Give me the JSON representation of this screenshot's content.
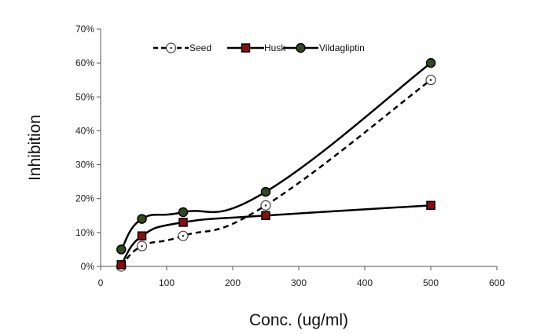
{
  "chart_data": {
    "type": "line",
    "title": "",
    "xlabel": "Conc. (ug/ml)",
    "ylabel": "Inhibition",
    "xlim": [
      0,
      600
    ],
    "ylim": [
      0,
      0.7
    ],
    "x_ticks": [
      0,
      100,
      200,
      300,
      400,
      500,
      600
    ],
    "y_ticks": [
      0,
      0.1,
      0.2,
      0.3,
      0.4,
      0.5,
      0.6,
      0.7
    ],
    "x_tick_labels": [
      "0",
      "100",
      "200",
      "300",
      "400",
      "500",
      "600"
    ],
    "y_tick_labels": [
      "0%",
      "10%",
      "20%",
      "30%",
      "40%",
      "50%",
      "60%",
      "70%"
    ],
    "grid": false,
    "legend_position": "top",
    "series": [
      {
        "name": "Seed",
        "x": [
          31.25,
          62.5,
          125,
          250,
          500
        ],
        "y": [
          0.0,
          0.06,
          0.09,
          0.18,
          0.55
        ],
        "line_style": "dashed",
        "marker": "open-circle-dot",
        "color": "#000000",
        "marker_fill": "#ffffff"
      },
      {
        "name": "Husk",
        "x": [
          31.25,
          62.5,
          125,
          250,
          500
        ],
        "y": [
          0.005,
          0.09,
          0.13,
          0.15,
          0.18
        ],
        "line_style": "solid",
        "marker": "square",
        "color": "#000000",
        "marker_fill": "#8b0d0d"
      },
      {
        "name": "Vildagliptin",
        "x": [
          31.25,
          62.5,
          125,
          250,
          500
        ],
        "y": [
          0.05,
          0.14,
          0.16,
          0.22,
          0.6
        ],
        "line_style": "solid",
        "marker": "filled-circle",
        "color": "#000000",
        "marker_fill": "#2f4a1c"
      }
    ]
  }
}
